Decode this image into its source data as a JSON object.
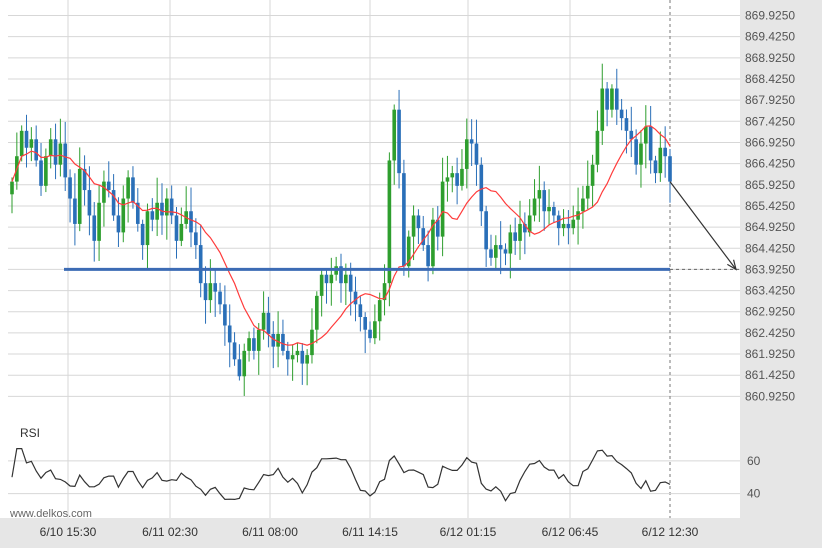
{
  "watermark": "www.delkos.com",
  "rsi_label": "RSI",
  "colors": {
    "bull": "#2e9e2e",
    "bear": "#2a6fb8",
    "ma": "#ff3b3b",
    "level": "#3c6bb4",
    "grid": "#d7d7d7",
    "axis_bg": "#e6e6e6",
    "arrow": "#333333"
  },
  "chart_data": [
    {
      "type": "candlestick",
      "y_tick_labels": [
        "869.9250",
        "869.4250",
        "868.9250",
        "868.4250",
        "867.9250",
        "867.4250",
        "866.9250",
        "866.4250",
        "865.9250",
        "865.4250",
        "864.9250",
        "864.4250",
        "863.9250",
        "863.4250",
        "862.9250",
        "862.4250",
        "861.9250",
        "861.4250",
        "860.9250"
      ],
      "ylim": [
        860.65,
        870.15
      ],
      "x_tick_labels": [
        "6/10 15:30",
        "6/11 02:30",
        "6/11 08:00",
        "6/11 14:15",
        "6/12 01:15",
        "6/12 06:45",
        "6/12 12:30"
      ],
      "closes": [
        866.0,
        866.6,
        867.2,
        866.8,
        867.0,
        866.5,
        865.9,
        866.6,
        867.0,
        866.4,
        866.9,
        866.1,
        865.6,
        865.0,
        866.3,
        865.8,
        865.2,
        864.6,
        865.5,
        866.0,
        865.8,
        865.2,
        864.8,
        865.6,
        866.1,
        865.5,
        865.0,
        864.5,
        865.3,
        865.1,
        865.5,
        865.2,
        865.6,
        865.2,
        864.6,
        865.0,
        865.3,
        864.8,
        864.5,
        863.6,
        863.2,
        863.6,
        863.4,
        863.1,
        862.6,
        862.2,
        861.8,
        861.4,
        862.0,
        862.3,
        862.0,
        862.5,
        862.9,
        862.4,
        862.1,
        862.4,
        862.0,
        861.8,
        861.9,
        862.0,
        861.7,
        861.9,
        862.5,
        863.3,
        863.8,
        863.6,
        863.8,
        864.0,
        863.6,
        863.8,
        863.4,
        863.1,
        862.8,
        862.5,
        862.3,
        862.7,
        863.2,
        863.6,
        866.5,
        867.7,
        866.2,
        864.0,
        864.7,
        865.2,
        864.9,
        864.5,
        864.0,
        865.1,
        864.7,
        866.0,
        866.1,
        866.2,
        865.9,
        866.3,
        867.0,
        866.9,
        866.4,
        865.3,
        864.4,
        864.2,
        864.5,
        864.4,
        864.3,
        864.8,
        864.6,
        865.0,
        864.8,
        865.2,
        865.6,
        865.8,
        865.3,
        865.4,
        865.2,
        864.9,
        865.0,
        864.9,
        865.1,
        865.3,
        865.6,
        865.9,
        866.4,
        867.2,
        868.2,
        867.7,
        868.2,
        867.7,
        867.5,
        867.2,
        867.0,
        866.4,
        866.9,
        867.3,
        866.5,
        866.2,
        866.8,
        866.6,
        866.0
      ],
      "rsi": {
        "ylim": [
          30,
          88
        ],
        "tick_labels": [
          "60",
          "40"
        ]
      },
      "support_level": 863.925,
      "forecast_target": 863.925
    }
  ]
}
